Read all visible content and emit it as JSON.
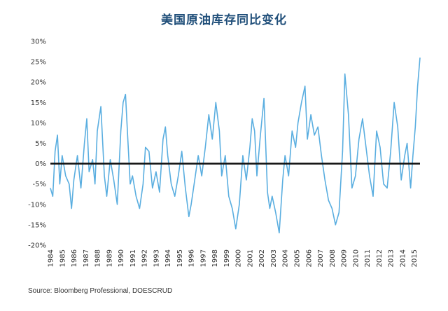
{
  "chart_data": {
    "type": "line",
    "title": "美国原油库存同比变化",
    "ylim": [
      -20,
      30
    ],
    "y_ticks": [
      "30%",
      "25%",
      "20%",
      "15%",
      "10%",
      "5%",
      "0%",
      "-5%",
      "-10%",
      "-15%",
      "-20%"
    ],
    "y_tick_values": [
      30,
      25,
      20,
      15,
      10,
      5,
      0,
      -5,
      -10,
      -15,
      -20
    ],
    "xlim": [
      1984,
      2015.5
    ],
    "x_ticks": [
      "1984",
      "1985",
      "1986",
      "1987",
      "1988",
      "1989",
      "1990",
      "1991",
      "1992",
      "1993",
      "1994",
      "1995",
      "1996",
      "1997",
      "1998",
      "1999",
      "2000",
      "2001",
      "2002",
      "2003",
      "2004",
      "2005",
      "2006",
      "2007",
      "2008",
      "2009",
      "2010",
      "2011",
      "2012",
      "2013",
      "2014",
      "2015"
    ],
    "grid": false,
    "colors": {
      "series": "#5aaee0",
      "zero_line": "#111111",
      "title": "#1f4e79"
    },
    "series": [
      {
        "x": [
          1984.0,
          1984.2,
          1984.4,
          1984.6,
          1984.8,
          1985.0,
          1985.3,
          1985.6,
          1985.8,
          1986.0,
          1986.3,
          1986.6,
          1986.9,
          1987.1,
          1987.3,
          1987.6,
          1987.8,
          1988.0,
          1988.3,
          1988.6,
          1988.8,
          1989.1,
          1989.4,
          1989.7,
          1990.0,
          1990.2,
          1990.4,
          1990.6,
          1990.8,
          1991.0,
          1991.3,
          1991.6,
          1991.9,
          1992.1,
          1992.4,
          1992.7,
          1993.0,
          1993.3,
          1993.6,
          1993.8,
          1994.0,
          1994.3,
          1994.6,
          1994.9,
          1995.2,
          1995.5,
          1995.8,
          1996.0,
          1996.3,
          1996.6,
          1996.9,
          1997.2,
          1997.5,
          1997.8,
          1998.1,
          1998.4,
          1998.6,
          1998.9,
          1999.2,
          1999.5,
          1999.8,
          2000.1,
          2000.4,
          2000.7,
          2001.0,
          2001.2,
          2001.4,
          2001.6,
          2001.9,
          2002.2,
          2002.5,
          2002.7,
          2002.9,
          2003.2,
          2003.5,
          2003.8,
          2004.0,
          2004.3,
          2004.6,
          2004.9,
          2005.1,
          2005.4,
          2005.7,
          2005.9,
          2006.2,
          2006.5,
          2006.8,
          2007.1,
          2007.4,
          2007.7,
          2008.0,
          2008.3,
          2008.6,
          2008.9,
          2009.1,
          2009.4,
          2009.7,
          2010.0,
          2010.3,
          2010.6,
          2010.9,
          2011.2,
          2011.5,
          2011.8,
          2012.1,
          2012.4,
          2012.7,
          2013.0,
          2013.3,
          2013.6,
          2013.9,
          2014.2,
          2014.4,
          2014.7,
          2014.9,
          2015.1,
          2015.3,
          2015.5
        ],
        "values": [
          -6,
          -8,
          3,
          7,
          -5,
          2,
          -3,
          -5,
          -11,
          -4,
          2,
          -6,
          5,
          11,
          -2,
          1,
          -5,
          8,
          14,
          -3,
          -8,
          1,
          -4,
          -10,
          8,
          15,
          17,
          6,
          -5,
          -3,
          -8,
          -11,
          -5,
          4,
          3,
          -6,
          -2,
          -7,
          6,
          9,
          2,
          -5,
          -8,
          -3,
          3,
          -6,
          -13,
          -10,
          -4,
          2,
          -3,
          4,
          12,
          6,
          15,
          8,
          -3,
          2,
          -8,
          -11,
          -16,
          -10,
          2,
          -4,
          4,
          11,
          8,
          -3,
          7,
          16,
          -7,
          -11,
          -8,
          -12,
          -17,
          -4,
          2,
          -3,
          8,
          4,
          10,
          15,
          19,
          6,
          12,
          7,
          9,
          2,
          -4,
          -9,
          -11,
          -15,
          -12,
          3,
          22,
          12,
          -6,
          -3,
          6,
          11,
          4,
          -3,
          -8,
          8,
          4,
          -5,
          -6,
          3,
          15,
          9,
          -4,
          2,
          5,
          -6,
          2,
          9,
          19,
          26
        ]
      }
    ]
  },
  "source": "Source: Bloomberg Professional, DOESCRUD"
}
